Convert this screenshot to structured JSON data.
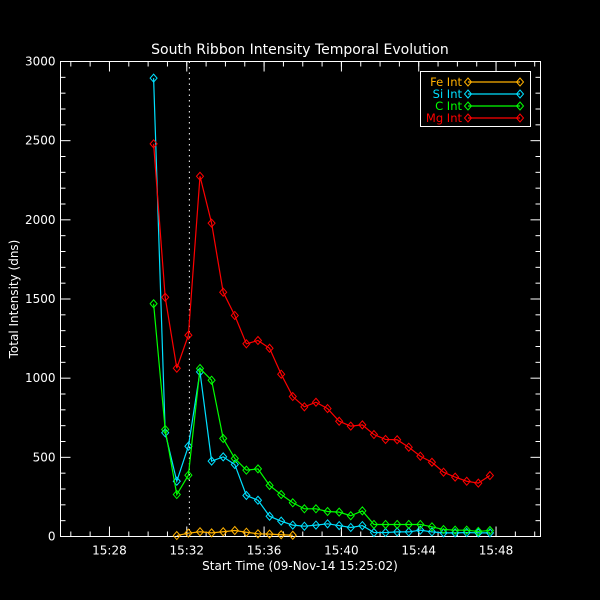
{
  "chart_data": {
    "type": "line",
    "title": "South Ribbon Intensity Temporal Evolution",
    "xlabel": "Start Time (09-Nov-14 15:25:02)",
    "ylabel": "Total Intensity (dns)",
    "xlim": [
      "15:25:28",
      "15:50:18"
    ],
    "ylim": [
      0,
      3000
    ],
    "x_tick_labels": [
      "15:28",
      "15:32",
      "15:36",
      "15:40",
      "15:44",
      "15:48"
    ],
    "y_tick_labels": [
      "0",
      "500",
      "1000",
      "1500",
      "2000",
      "2500",
      "3000"
    ],
    "y_ticks": [
      0,
      500,
      1000,
      1500,
      2000,
      2500,
      3000
    ],
    "grid": false,
    "legend_position": "top-right",
    "reference_line": {
      "x": "15:32:08",
      "style": "dotted",
      "color": "#ffffff"
    },
    "background": "#000000",
    "x": [
      "15:30:17",
      "15:30:53",
      "15:31:29",
      "15:32:05",
      "15:32:41",
      "15:33:17",
      "15:33:53",
      "15:34:29",
      "15:35:05",
      "15:35:41",
      "15:36:17",
      "15:36:53",
      "15:37:29",
      "15:38:05",
      "15:38:41",
      "15:39:17",
      "15:39:53",
      "15:40:29",
      "15:41:05",
      "15:41:41",
      "15:42:17",
      "15:42:53",
      "15:43:29",
      "15:44:05",
      "15:44:41",
      "15:45:17",
      "15:45:53",
      "15:46:29",
      "15:47:05",
      "15:47:41"
    ],
    "series": [
      {
        "name": "Fe Int",
        "color": "#ffb000",
        "marker": "diamond",
        "values": [
          null,
          null,
          6,
          21,
          30,
          23,
          30,
          38,
          27,
          17,
          15,
          11,
          8,
          null,
          null,
          null,
          null,
          null,
          null,
          null,
          null,
          null,
          null,
          null,
          null,
          null,
          null,
          null,
          null,
          null
        ]
      },
      {
        "name": "Si Int",
        "color": "#00e0ff",
        "marker": "diamond",
        "values": [
          2895,
          655,
          349,
          570,
          1040,
          476,
          503,
          455,
          259,
          229,
          128,
          97,
          72,
          65,
          72,
          80,
          69,
          57,
          69,
          25,
          25,
          29,
          29,
          40,
          29,
          23,
          23,
          25,
          23,
          23
        ]
      },
      {
        "name": "C Int",
        "color": "#00ff00",
        "marker": "diamond",
        "values": [
          1470,
          676,
          265,
          387,
          1061,
          987,
          619,
          493,
          419,
          427,
          322,
          265,
          213,
          175,
          175,
          158,
          154,
          131,
          162,
          76,
          76,
          76,
          76,
          76,
          61,
          44,
          40,
          40,
          32,
          38
        ]
      },
      {
        "name": "Mg Int",
        "color": "#ff0000",
        "marker": "diamond",
        "values": [
          2480,
          1511,
          1063,
          1271,
          2275,
          1979,
          1543,
          1396,
          1217,
          1238,
          1189,
          1025,
          884,
          819,
          848,
          808,
          728,
          697,
          705,
          644,
          613,
          611,
          564,
          507,
          469,
          406,
          375,
          349,
          337,
          385
        ]
      }
    ]
  }
}
